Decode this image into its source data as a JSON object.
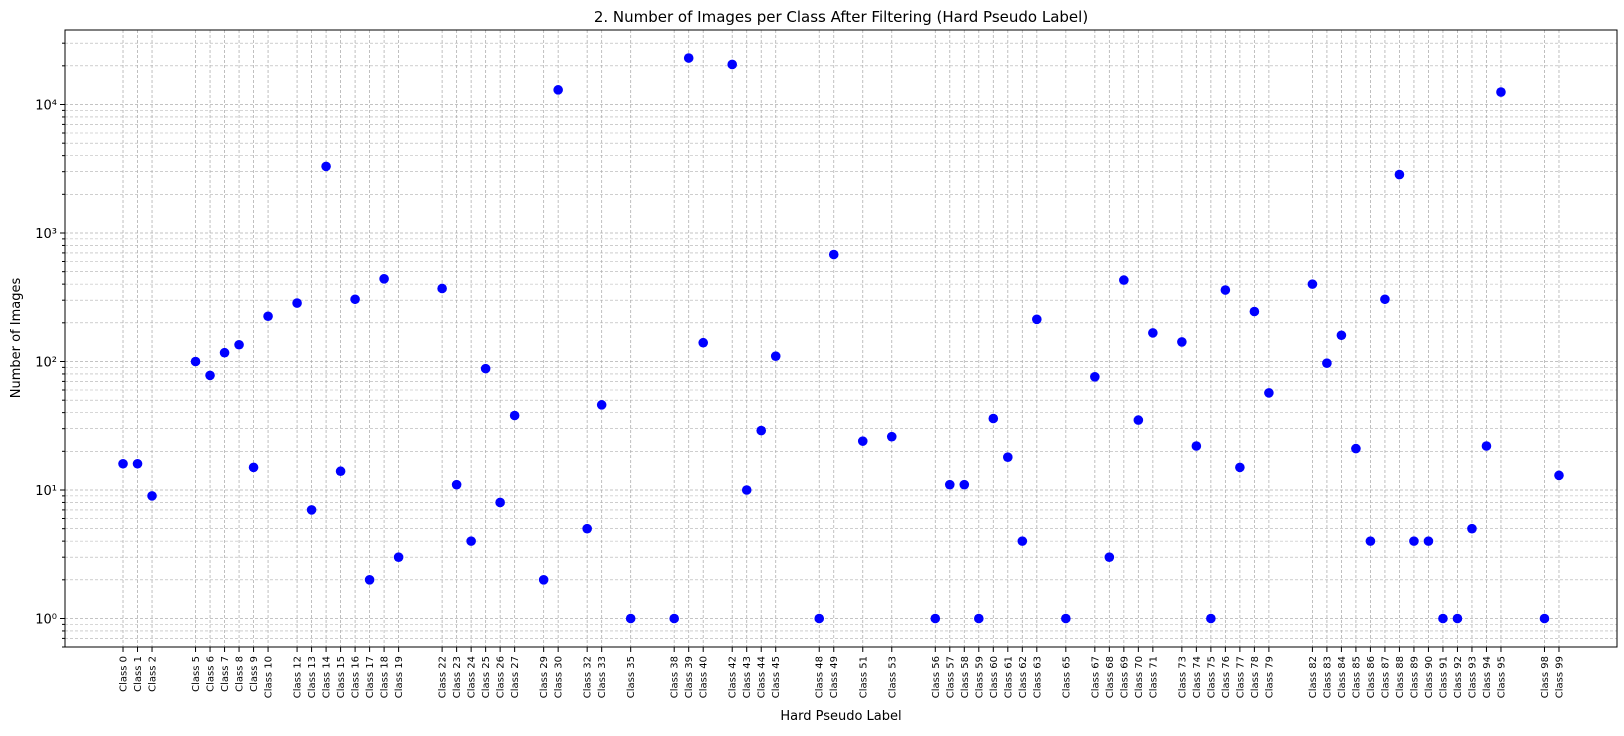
{
  "chart_data": {
    "type": "scatter",
    "title": "2. Number of Images per Class After Filtering (Hard Pseudo Label)",
    "xlabel": "Hard Pseudo Label",
    "ylabel": "Number of Images",
    "yscale": "log",
    "ylim": [
      0.6,
      38000
    ],
    "y_tick_labels": [
      "10⁰",
      "10¹",
      "10²",
      "10³",
      "10⁴"
    ],
    "grid": true,
    "marker_color": "#0000ff",
    "x_index_range": [
      0,
      99
    ],
    "points": [
      {
        "cls": 0,
        "label": "Class 0",
        "y": 16
      },
      {
        "cls": 1,
        "label": "Class 1",
        "y": 16
      },
      {
        "cls": 2,
        "label": "Class 2",
        "y": 9
      },
      {
        "cls": 5,
        "label": "Class 5",
        "y": 100
      },
      {
        "cls": 6,
        "label": "Class 6",
        "y": 78
      },
      {
        "cls": 7,
        "label": "Class 7",
        "y": 117
      },
      {
        "cls": 8,
        "label": "Class 8",
        "y": 135
      },
      {
        "cls": 9,
        "label": "Class 9",
        "y": 15
      },
      {
        "cls": 10,
        "label": "Class 10",
        "y": 225
      },
      {
        "cls": 12,
        "label": "Class 12",
        "y": 285
      },
      {
        "cls": 13,
        "label": "Class 13",
        "y": 7
      },
      {
        "cls": 14,
        "label": "Class 14",
        "y": 3300
      },
      {
        "cls": 15,
        "label": "Class 15",
        "y": 14
      },
      {
        "cls": 16,
        "label": "Class 16",
        "y": 305
      },
      {
        "cls": 17,
        "label": "Class 17",
        "y": 2
      },
      {
        "cls": 18,
        "label": "Class 18",
        "y": 440
      },
      {
        "cls": 19,
        "label": "Class 19",
        "y": 3
      },
      {
        "cls": 22,
        "label": "Class 22",
        "y": 370
      },
      {
        "cls": 23,
        "label": "Class 23",
        "y": 11
      },
      {
        "cls": 24,
        "label": "Class 24",
        "y": 4
      },
      {
        "cls": 25,
        "label": "Class 25",
        "y": 88
      },
      {
        "cls": 26,
        "label": "Class 26",
        "y": 8
      },
      {
        "cls": 27,
        "label": "Class 27",
        "y": 38
      },
      {
        "cls": 29,
        "label": "Class 29",
        "y": 2
      },
      {
        "cls": 30,
        "label": "Class 30",
        "y": 13000
      },
      {
        "cls": 32,
        "label": "Class 32",
        "y": 5
      },
      {
        "cls": 33,
        "label": "Class 33",
        "y": 46
      },
      {
        "cls": 35,
        "label": "Class 35",
        "y": 1
      },
      {
        "cls": 38,
        "label": "Class 38",
        "y": 1
      },
      {
        "cls": 39,
        "label": "Class 39",
        "y": 23000
      },
      {
        "cls": 40,
        "label": "Class 40",
        "y": 140
      },
      {
        "cls": 42,
        "label": "Class 42",
        "y": 20500
      },
      {
        "cls": 43,
        "label": "Class 43",
        "y": 10
      },
      {
        "cls": 44,
        "label": "Class 44",
        "y": 29
      },
      {
        "cls": 45,
        "label": "Class 45",
        "y": 110
      },
      {
        "cls": 48,
        "label": "Class 48",
        "y": 1
      },
      {
        "cls": 49,
        "label": "Class 49",
        "y": 680
      },
      {
        "cls": 51,
        "label": "Class 51",
        "y": 24
      },
      {
        "cls": 53,
        "label": "Class 53",
        "y": 26
      },
      {
        "cls": 56,
        "label": "Class 56",
        "y": 1
      },
      {
        "cls": 57,
        "label": "Class 57",
        "y": 11
      },
      {
        "cls": 58,
        "label": "Class 58",
        "y": 11
      },
      {
        "cls": 59,
        "label": "Class 59",
        "y": 1
      },
      {
        "cls": 60,
        "label": "Class 60",
        "y": 36
      },
      {
        "cls": 61,
        "label": "Class 61",
        "y": 18
      },
      {
        "cls": 62,
        "label": "Class 62",
        "y": 4
      },
      {
        "cls": 63,
        "label": "Class 63",
        "y": 213
      },
      {
        "cls": 65,
        "label": "Class 65",
        "y": 1
      },
      {
        "cls": 67,
        "label": "Class 67",
        "y": 76
      },
      {
        "cls": 68,
        "label": "Class 68",
        "y": 3
      },
      {
        "cls": 69,
        "label": "Class 69",
        "y": 430
      },
      {
        "cls": 70,
        "label": "Class 70",
        "y": 35
      },
      {
        "cls": 71,
        "label": "Class 71",
        "y": 167
      },
      {
        "cls": 73,
        "label": "Class 73",
        "y": 142
      },
      {
        "cls": 74,
        "label": "Class 74",
        "y": 22
      },
      {
        "cls": 75,
        "label": "Class 75",
        "y": 1
      },
      {
        "cls": 76,
        "label": "Class 76",
        "y": 360
      },
      {
        "cls": 77,
        "label": "Class 77",
        "y": 15
      },
      {
        "cls": 78,
        "label": "Class 78",
        "y": 245
      },
      {
        "cls": 79,
        "label": "Class 79",
        "y": 57
      },
      {
        "cls": 82,
        "label": "Class 82",
        "y": 400
      },
      {
        "cls": 83,
        "label": "Class 83",
        "y": 97
      },
      {
        "cls": 84,
        "label": "Class 84",
        "y": 160
      },
      {
        "cls": 85,
        "label": "Class 85",
        "y": 21
      },
      {
        "cls": 86,
        "label": "Class 86",
        "y": 4
      },
      {
        "cls": 87,
        "label": "Class 87",
        "y": 305
      },
      {
        "cls": 88,
        "label": "Class 88",
        "y": 2850
      },
      {
        "cls": 89,
        "label": "Class 89",
        "y": 4
      },
      {
        "cls": 90,
        "label": "Class 90",
        "y": 4
      },
      {
        "cls": 91,
        "label": "Class 91",
        "y": 1
      },
      {
        "cls": 92,
        "label": "Class 92",
        "y": 1
      },
      {
        "cls": 93,
        "label": "Class 93",
        "y": 5
      },
      {
        "cls": 94,
        "label": "Class 94",
        "y": 22
      },
      {
        "cls": 95,
        "label": "Class 95",
        "y": 12500
      },
      {
        "cls": 98,
        "label": "Class 98",
        "y": 1
      },
      {
        "cls": 99,
        "label": "Class 99",
        "y": 13
      }
    ]
  }
}
